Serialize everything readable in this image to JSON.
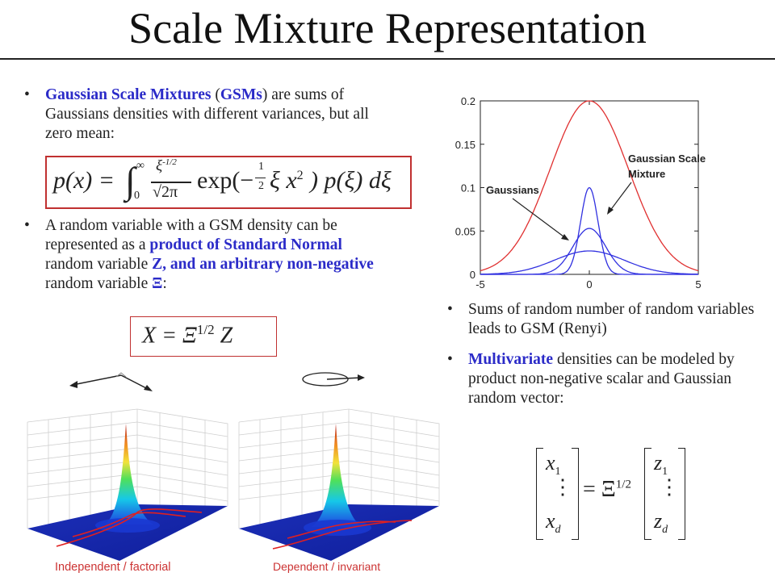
{
  "title": "Scale Mixture Representation",
  "left": {
    "bullet1": {
      "highlight": "Gaussian Scale Mixtures",
      "paren_open": " (",
      "abbr": "GSMs",
      "paren_close": ")",
      "rest": " are sums of Gaussians densities with different variances, but all zero mean:"
    },
    "formula": {
      "lhs": "p(x) =",
      "int_upper": "∞",
      "int_lower": "0",
      "frac_num": "ξ",
      "frac_num_exp": "-1/2",
      "frac_den": "√2π",
      "exp_text": "exp(−",
      "half_num": "1",
      "half_den": "2",
      "exp_arg": "ξ x",
      "exp_arg_sup": "2",
      "tail": ") p(ξ) dξ"
    },
    "bullet2": {
      "t1": "A random variable with a GSM density can be represented as a ",
      "b1": "product of Standard Normal",
      "t2": " random variable ",
      "b2": "Z, and an arbitrary non-negative",
      "t3": " random variable ",
      "b3": "Ξ",
      "t4": ":"
    },
    "formula2": {
      "lhs": "X = Ξ",
      "sup": "1/2",
      "rhs": "Z"
    }
  },
  "chart_data": {
    "type": "line",
    "xlim": [
      -5,
      5
    ],
    "ylim": [
      0,
      0.2
    ],
    "xticks": [
      "-5",
      "0",
      "5"
    ],
    "yticks": [
      "0",
      "0.05",
      "0.1",
      "0.15",
      "0.2"
    ],
    "series": [
      {
        "color": "#e03030",
        "sigma": 1.8,
        "peak": 0.2
      },
      {
        "color": "#3030e0",
        "sigma": 0.4,
        "peak": 0.1
      },
      {
        "color": "#3030e0",
        "sigma": 0.75,
        "peak": 0.053
      },
      {
        "color": "#3030e0",
        "sigma": 1.6,
        "peak": 0.027
      }
    ],
    "annotations": [
      {
        "text": "Gaussians"
      },
      {
        "text_line1": "Gaussian Scale",
        "text_line2": "Mixture"
      }
    ]
  },
  "right": {
    "bullet3": "Sums of random number of random variables leads to GSM (Renyi)",
    "bullet4_highlight": "Multivariate",
    "bullet4_rest": " densities can be modeled by product non-negative scalar and Gaussian random vector:",
    "matrix": {
      "x1": "x",
      "x1_sub": "1",
      "xd": "x",
      "xd_sub": "d",
      "eq": "= Ξ",
      "eq_sup": "1/2",
      "z1": "z",
      "z1_sub": "1",
      "zd": "z",
      "zd_sub": "d",
      "vdots": "⋮"
    }
  },
  "plots": {
    "caption_left": "Independent / factorial",
    "caption_right": "Dependent / invariant"
  }
}
